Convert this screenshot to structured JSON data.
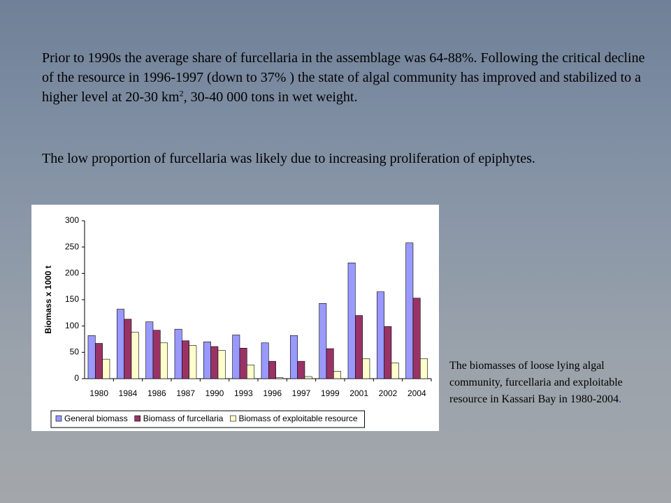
{
  "slide": {
    "paragraph1": [
      "Prior to 1990s the average share of furcellaria in the assemblage was 64-88%. Following the critical decline of the resource in 1996-1997  (down to 37% ) the state of algal community has improved and stabilized to a higher level at 20-30 km",
      "2",
      ", 30-40 000 tons in wet weight."
    ],
    "paragraph2": "The low proportion of furcellaria was likely due to increasing proliferation of epiphytes.",
    "caption": [
      "The biomasses of loose lying algal community, furcellaria and exploitable resource in Kassari Bay in 1980-2004",
      "."
    ]
  },
  "chart_data": {
    "type": "bar",
    "y_label": "Biomass x 1000 t",
    "categories": [
      "1980",
      "1984",
      "1986",
      "1987",
      "1990",
      "1993",
      "1996",
      "1997",
      "1999",
      "2001",
      "2002",
      "2004"
    ],
    "series": [
      {
        "name": "General biomass",
        "color": "#9999ff",
        "values": [
          82,
          132,
          108,
          94,
          70,
          83,
          68,
          82,
          143,
          220,
          165,
          258
        ]
      },
      {
        "name": "Biomass of furcellaria",
        "color": "#993366",
        "values": [
          67,
          113,
          92,
          72,
          61,
          58,
          33,
          33,
          57,
          120,
          99,
          153
        ]
      },
      {
        "name": "Biomass of exploitable resource",
        "color": "#ffffcc",
        "values": [
          37,
          88,
          68,
          63,
          54,
          26,
          2,
          4,
          14,
          38,
          30,
          38
        ]
      }
    ],
    "ylim": [
      0,
      300
    ],
    "yticks": [
      0,
      50,
      100,
      150,
      200,
      250,
      300
    ],
    "legend": "bottom"
  }
}
